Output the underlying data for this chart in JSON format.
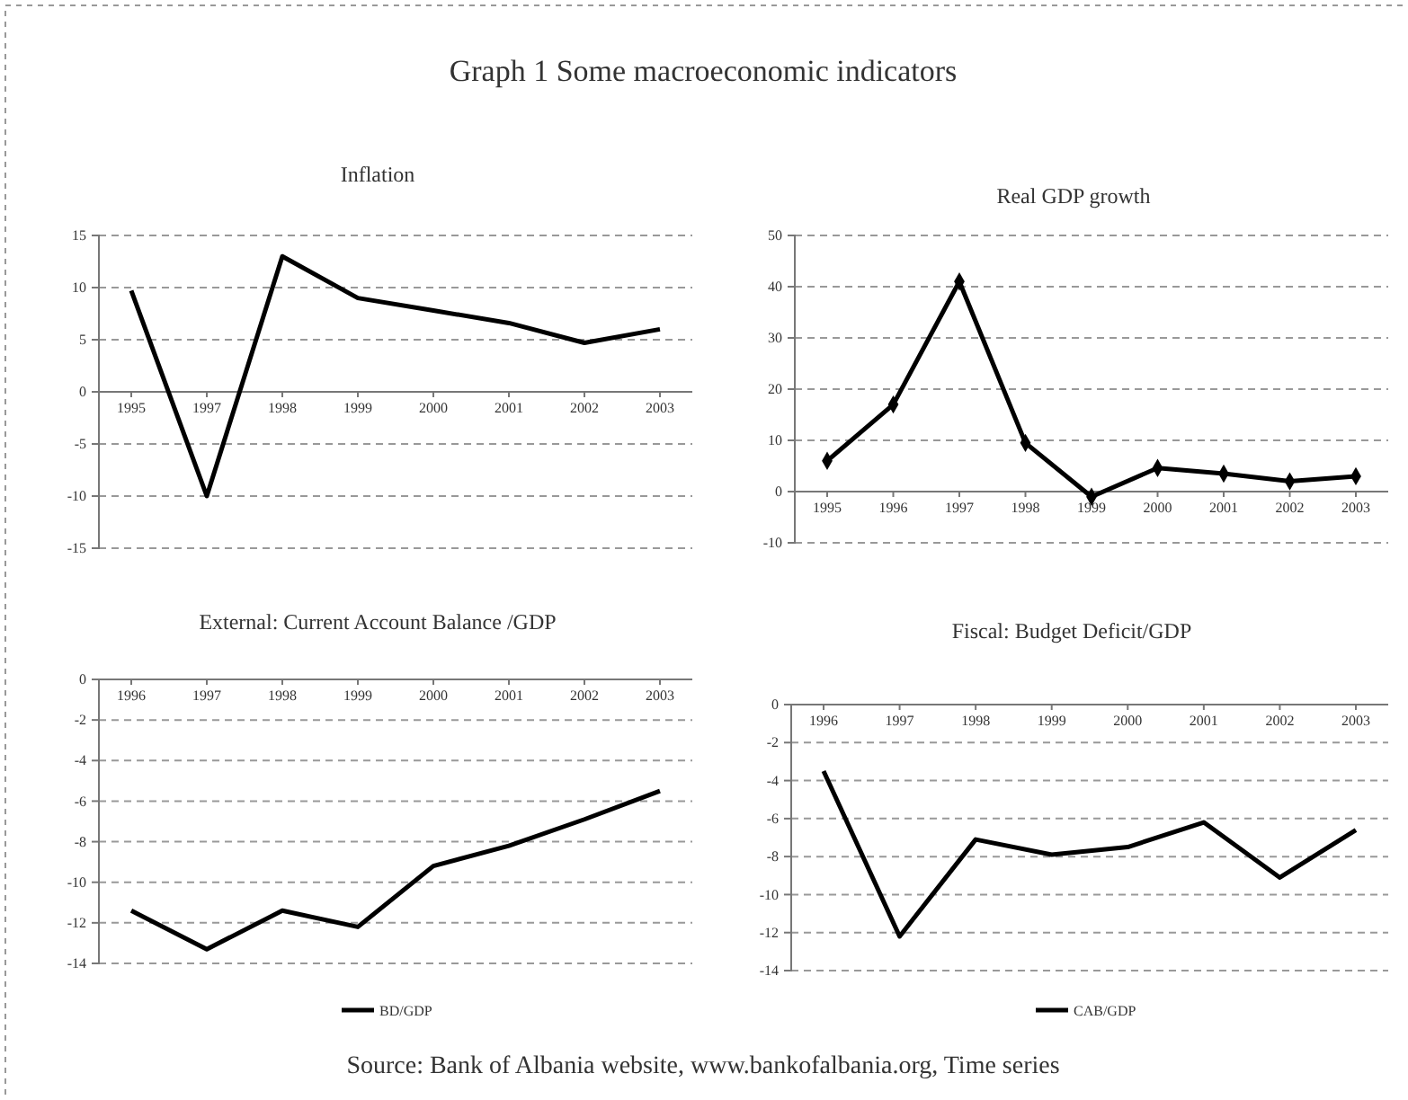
{
  "chart_data": [
    {
      "type": "line",
      "title": "Inflation",
      "annotations": [
        "Graph 1 Some macroeconomic indicators"
      ],
      "categories": [
        "1995",
        "1997",
        "1998",
        "1999",
        "2000",
        "2001",
        "2002",
        "2003"
      ],
      "series": [
        {
          "color": "#000000",
          "values": [
            9.7,
            -10,
            13,
            9,
            7.8,
            6.6,
            4.7,
            6
          ]
        }
      ],
      "ylim": [
        -15,
        15
      ],
      "yticks": [
        -15,
        -10,
        -5,
        0,
        5,
        10,
        15
      ],
      "grid": "y",
      "marker": "none",
      "legend": false
    },
    {
      "type": "line",
      "title": "Real GDP growth",
      "categories": [
        "1995",
        "1996",
        "1997",
        "1998",
        "1999",
        "2000",
        "2001",
        "2002",
        "2003"
      ],
      "series": [
        {
          "color": "#000000",
          "values": [
            6,
            17,
            41,
            9.5,
            -1,
            4.6,
            3.5,
            2,
            3
          ]
        }
      ],
      "ylim": [
        -10,
        50
      ],
      "yticks": [
        -10,
        0,
        10,
        20,
        30,
        40,
        50
      ],
      "grid": "y",
      "marker": "diamond",
      "legend": false
    },
    {
      "type": "line",
      "title": "External: Current Account Balance /GDP",
      "categories": [
        "1996",
        "1997",
        "1998",
        "1999",
        "2000",
        "2001",
        "2002",
        "2003"
      ],
      "series": [
        {
          "name": "BD/GDP",
          "color": "#000000",
          "values": [
            -11.4,
            -13.3,
            -11.4,
            -12.2,
            -9.2,
            -8.2,
            -6.9,
            -5.5
          ]
        }
      ],
      "ylim": [
        -14,
        0
      ],
      "yticks": [
        -14,
        -12,
        -10,
        -8,
        -6,
        -4,
        -2,
        0
      ],
      "grid": "y",
      "marker": "none",
      "legend": "bottom"
    },
    {
      "type": "line",
      "title": "Fiscal: Budget Deficit/GDP",
      "annotations": [
        "Source: Bank of Albania website, www.bankofalbania.org, Time series"
      ],
      "categories": [
        "1996",
        "1997",
        "1998",
        "1999",
        "2000",
        "2001",
        "2002",
        "2003"
      ],
      "series": [
        {
          "name": "CAB/GDP",
          "color": "#000000",
          "values": [
            -3.5,
            -12.2,
            -7.1,
            -7.9,
            -7.5,
            -6.2,
            -9.1,
            -6.6
          ]
        }
      ],
      "ylim": [
        -14,
        0
      ],
      "yticks": [
        -14,
        -12,
        -10,
        -8,
        -6,
        -4,
        -2,
        0
      ],
      "grid": "y",
      "marker": "none",
      "legend": "bottom"
    }
  ]
}
